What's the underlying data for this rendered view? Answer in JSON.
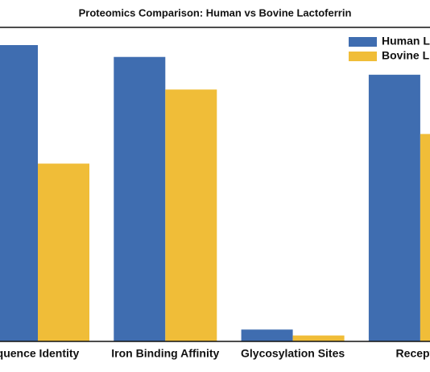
{
  "chart_data": {
    "type": "bar",
    "title": "Proteomics Comparison: Human vs Bovine Lactoferrin",
    "categories": [
      "quence Identity",
      "Iron Binding Affinity",
      "Glycosylation Sites",
      "Receptor"
    ],
    "series": [
      {
        "name": "Human L",
        "color": "#3f6db0",
        "values": [
          100,
          96,
          4,
          90
        ]
      },
      {
        "name": "Bovine L",
        "color": "#f0bd38",
        "values": [
          60,
          85,
          2,
          70
        ]
      }
    ],
    "ylim": [
      0,
      100
    ]
  }
}
